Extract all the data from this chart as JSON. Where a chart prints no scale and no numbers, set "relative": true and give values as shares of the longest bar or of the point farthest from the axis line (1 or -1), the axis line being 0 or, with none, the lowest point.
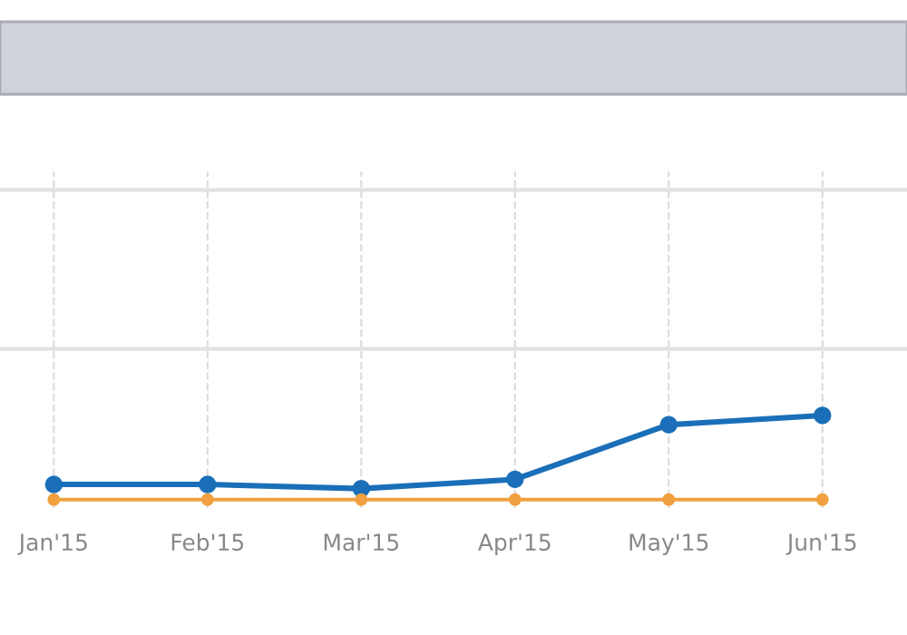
{
  "chart_data": {
    "type": "line",
    "relative": true,
    "categories": [
      "Jan'15",
      "Feb'15",
      "Mar'15",
      "Apr'15",
      "May'15",
      "Jun'15"
    ],
    "series": [
      {
        "color": "#1a6fb8",
        "values": [
          0.18,
          0.18,
          0.13,
          0.24,
          0.89,
          1
        ]
      },
      {
        "color": "#f0a040",
        "values": [
          0,
          0,
          0,
          0,
          0,
          0
        ]
      }
    ],
    "marker": "circle",
    "line_style": "solid",
    "grid": true,
    "legend": false
  }
}
